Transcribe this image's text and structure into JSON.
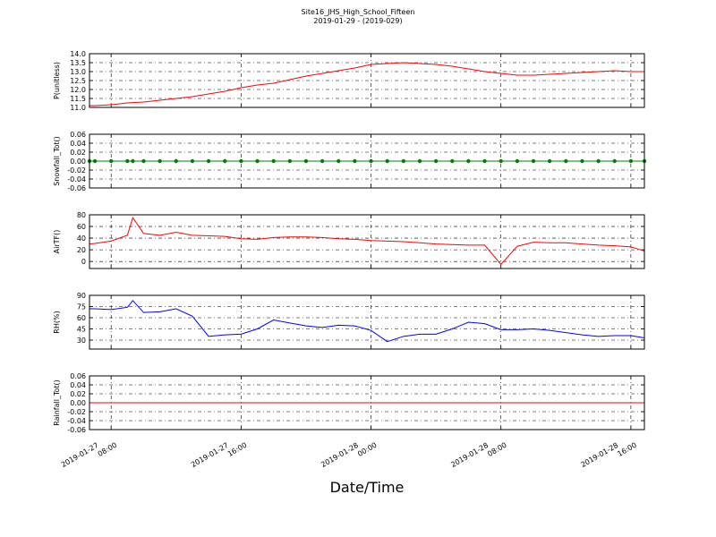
{
  "chart_data": [
    {
      "type": "line",
      "title": "Site16_JHS_High_School_Fifteen",
      "subtitle": "2019-01-29 - (2019-029)",
      "ylabel": "P(unitless)",
      "color": "#ff0000",
      "grid": true,
      "x": [
        "2019-01-27 06:40",
        "2019-01-27 07:00",
        "2019-01-27 08:00",
        "2019-01-27 09:00",
        "2019-01-27 09:20",
        "2019-01-27 10:00",
        "2019-01-27 11:00",
        "2019-01-27 12:00",
        "2019-01-27 13:00",
        "2019-01-27 14:00",
        "2019-01-27 15:00",
        "2019-01-27 16:00",
        "2019-01-27 17:00",
        "2019-01-27 18:00",
        "2019-01-27 19:00",
        "2019-01-27 20:00",
        "2019-01-27 21:00",
        "2019-01-27 22:00",
        "2019-01-27 23:00",
        "2019-01-28 00:00",
        "2019-01-28 01:00",
        "2019-01-28 02:00",
        "2019-01-28 03:00",
        "2019-01-28 04:00",
        "2019-01-28 05:00",
        "2019-01-28 06:00",
        "2019-01-28 07:00",
        "2019-01-28 08:00",
        "2019-01-28 09:00",
        "2019-01-28 10:00",
        "2019-01-28 11:00",
        "2019-01-28 12:00",
        "2019-01-28 13:00",
        "2019-01-28 14:00",
        "2019-01-28 15:00",
        "2019-01-28 16:00",
        "2019-01-28 16:50"
      ],
      "values": [
        11.1,
        11.1,
        11.15,
        11.25,
        11.27,
        11.3,
        11.4,
        11.5,
        11.6,
        11.75,
        11.9,
        12.1,
        12.25,
        12.35,
        12.55,
        12.75,
        12.9,
        13.05,
        13.2,
        13.4,
        13.45,
        13.5,
        13.45,
        13.4,
        13.3,
        13.15,
        13.0,
        12.9,
        12.8,
        12.8,
        12.85,
        12.9,
        12.95,
        13.0,
        13.05,
        13.0,
        13.0
      ],
      "ylim": [
        11,
        14
      ],
      "yticks": [
        {
          "value": 11,
          "label": "11.0"
        },
        11.5,
        {
          "value": 12,
          "label": "12.0"
        },
        12.5,
        {
          "value": 13,
          "label": "13.0"
        },
        13.5,
        {
          "value": 14,
          "label": "14.0"
        }
      ]
    },
    {
      "type": "line",
      "ylabel": "Snowfall_Tot()",
      "color": "#008000",
      "markers": true,
      "grid": true,
      "x": [
        "2019-01-27 06:40",
        "2019-01-27 07:00",
        "2019-01-27 08:00",
        "2019-01-27 09:00",
        "2019-01-27 09:20",
        "2019-01-27 10:00",
        "2019-01-27 11:00",
        "2019-01-27 12:00",
        "2019-01-27 13:00",
        "2019-01-27 14:00",
        "2019-01-27 15:00",
        "2019-01-27 16:00",
        "2019-01-27 17:00",
        "2019-01-27 18:00",
        "2019-01-27 19:00",
        "2019-01-27 20:00",
        "2019-01-27 21:00",
        "2019-01-27 22:00",
        "2019-01-27 23:00",
        "2019-01-28 00:00",
        "2019-01-28 01:00",
        "2019-01-28 02:00",
        "2019-01-28 03:00",
        "2019-01-28 04:00",
        "2019-01-28 05:00",
        "2019-01-28 06:00",
        "2019-01-28 07:00",
        "2019-01-28 08:00",
        "2019-01-28 09:00",
        "2019-01-28 10:00",
        "2019-01-28 11:00",
        "2019-01-28 12:00",
        "2019-01-28 13:00",
        "2019-01-28 14:00",
        "2019-01-28 15:00",
        "2019-01-28 16:00",
        "2019-01-28 16:50"
      ],
      "values": [
        0,
        0,
        0,
        0,
        0,
        0,
        0,
        0,
        0,
        0,
        0,
        0,
        0,
        0,
        0,
        0,
        0,
        0,
        0,
        0,
        0,
        0,
        0,
        0,
        0,
        0,
        0,
        0,
        0,
        0,
        0,
        0,
        0,
        0,
        0,
        0,
        0
      ],
      "ylim": [
        -0.06,
        0.06
      ],
      "yticks": [
        {
          "value": -0.06,
          "label": "-0.06"
        },
        {
          "value": -0.04,
          "label": "-0.04"
        },
        {
          "value": -0.02,
          "label": "-0.02"
        },
        {
          "value": 0,
          "label": "0.00"
        },
        {
          "value": 0.02,
          "label": "0.02"
        },
        {
          "value": 0.04,
          "label": "0.04"
        },
        {
          "value": 0.06,
          "label": "0.06"
        }
      ]
    },
    {
      "type": "line",
      "ylabel": "AirTF()",
      "color": "#ff0000",
      "grid": true,
      "x": [
        "2019-01-27 06:40",
        "2019-01-27 07:00",
        "2019-01-27 08:00",
        "2019-01-27 09:00",
        "2019-01-27 09:20",
        "2019-01-27 10:00",
        "2019-01-27 11:00",
        "2019-01-27 12:00",
        "2019-01-27 13:00",
        "2019-01-27 14:00",
        "2019-01-27 15:00",
        "2019-01-27 16:00",
        "2019-01-27 17:00",
        "2019-01-27 18:00",
        "2019-01-27 19:00",
        "2019-01-27 20:00",
        "2019-01-27 21:00",
        "2019-01-27 22:00",
        "2019-01-27 23:00",
        "2019-01-28 00:00",
        "2019-01-28 01:00",
        "2019-01-28 02:00",
        "2019-01-28 03:00",
        "2019-01-28 04:00",
        "2019-01-28 05:00",
        "2019-01-28 06:00",
        "2019-01-28 07:00",
        "2019-01-28 08:00",
        "2019-01-28 09:00",
        "2019-01-28 10:00",
        "2019-01-28 11:00",
        "2019-01-28 12:00",
        "2019-01-28 13:00",
        "2019-01-28 14:00",
        "2019-01-28 15:00",
        "2019-01-28 16:00",
        "2019-01-28 16:50"
      ],
      "values": [
        30,
        31,
        35,
        45,
        75,
        48,
        45,
        50,
        45,
        44,
        43,
        39,
        38,
        41,
        42,
        42,
        41,
        39,
        38,
        36,
        35,
        34,
        32,
        30,
        29,
        28,
        28,
        -5,
        26,
        33,
        32,
        32,
        30,
        28,
        27,
        25,
        18
      ],
      "ylim": [
        -12,
        80
      ],
      "yticks": [
        0,
        20,
        40,
        60,
        80
      ]
    },
    {
      "type": "line",
      "ylabel": "RH(%)",
      "color": "#0000ff",
      "grid": true,
      "x": [
        "2019-01-27 06:40",
        "2019-01-27 07:00",
        "2019-01-27 08:00",
        "2019-01-27 09:00",
        "2019-01-27 09:20",
        "2019-01-27 10:00",
        "2019-01-27 11:00",
        "2019-01-27 12:00",
        "2019-01-27 13:00",
        "2019-01-27 14:00",
        "2019-01-27 15:00",
        "2019-01-27 16:00",
        "2019-01-27 17:00",
        "2019-01-27 18:00",
        "2019-01-27 19:00",
        "2019-01-27 20:00",
        "2019-01-27 21:00",
        "2019-01-27 22:00",
        "2019-01-27 23:00",
        "2019-01-28 00:00",
        "2019-01-28 01:00",
        "2019-01-28 02:00",
        "2019-01-28 03:00",
        "2019-01-28 04:00",
        "2019-01-28 05:00",
        "2019-01-28 06:00",
        "2019-01-28 07:00",
        "2019-01-28 08:00",
        "2019-01-28 09:00",
        "2019-01-28 10:00",
        "2019-01-28 11:00",
        "2019-01-28 12:00",
        "2019-01-28 13:00",
        "2019-01-28 14:00",
        "2019-01-28 15:00",
        "2019-01-28 16:00",
        "2019-01-28 16:50"
      ],
      "values": [
        72,
        72,
        71,
        74,
        83,
        67,
        68,
        72,
        62,
        35,
        37,
        38,
        45,
        57,
        53,
        49,
        47,
        50,
        49,
        43,
        28,
        35,
        38,
        38,
        45,
        54,
        52,
        44,
        44,
        45,
        43,
        40,
        37,
        35,
        36,
        36,
        33
      ],
      "ylim": [
        18,
        90
      ],
      "yticks": [
        30,
        45,
        60,
        75,
        90
      ]
    },
    {
      "type": "line",
      "ylabel": "Rainfall_Tot()",
      "color": "#ff0000",
      "grid": true,
      "xlabel": "Date/Time",
      "x": [
        "2019-01-27 06:40",
        "2019-01-27 07:00",
        "2019-01-27 08:00",
        "2019-01-27 09:00",
        "2019-01-27 09:20",
        "2019-01-27 10:00",
        "2019-01-27 11:00",
        "2019-01-27 12:00",
        "2019-01-27 13:00",
        "2019-01-27 14:00",
        "2019-01-27 15:00",
        "2019-01-27 16:00",
        "2019-01-27 17:00",
        "2019-01-27 18:00",
        "2019-01-27 19:00",
        "2019-01-27 20:00",
        "2019-01-27 21:00",
        "2019-01-27 22:00",
        "2019-01-27 23:00",
        "2019-01-28 00:00",
        "2019-01-28 01:00",
        "2019-01-28 02:00",
        "2019-01-28 03:00",
        "2019-01-28 04:00",
        "2019-01-28 05:00",
        "2019-01-28 06:00",
        "2019-01-28 07:00",
        "2019-01-28 08:00",
        "2019-01-28 09:00",
        "2019-01-28 10:00",
        "2019-01-28 11:00",
        "2019-01-28 12:00",
        "2019-01-28 13:00",
        "2019-01-28 14:00",
        "2019-01-28 15:00",
        "2019-01-28 16:00",
        "2019-01-28 16:50"
      ],
      "values": [
        0,
        0,
        0,
        0,
        0,
        0,
        0,
        0,
        0,
        0,
        0,
        0,
        0,
        0,
        0,
        0,
        0,
        0,
        0,
        0,
        0,
        0,
        0,
        0,
        0,
        0,
        0,
        0,
        0,
        0,
        0,
        0,
        0,
        0,
        0,
        0,
        0
      ],
      "ylim": [
        -0.06,
        0.06
      ],
      "yticks": [
        {
          "value": -0.06,
          "label": "-0.06"
        },
        {
          "value": -0.04,
          "label": "-0.04"
        },
        {
          "value": -0.02,
          "label": "-0.02"
        },
        {
          "value": 0,
          "label": "0.00"
        },
        {
          "value": 0.02,
          "label": "0.02"
        },
        {
          "value": 0.04,
          "label": "0.04"
        },
        {
          "value": 0.06,
          "label": "0.06"
        }
      ],
      "xlim": [
        "2019-01-27 06:40",
        "2019-01-28 16:50"
      ],
      "xticks": [
        "2019-01-27 08:00",
        "2019-01-27 16:00",
        "2019-01-28 00:00",
        "2019-01-28 08:00",
        "2019-01-28 16:00"
      ]
    }
  ]
}
